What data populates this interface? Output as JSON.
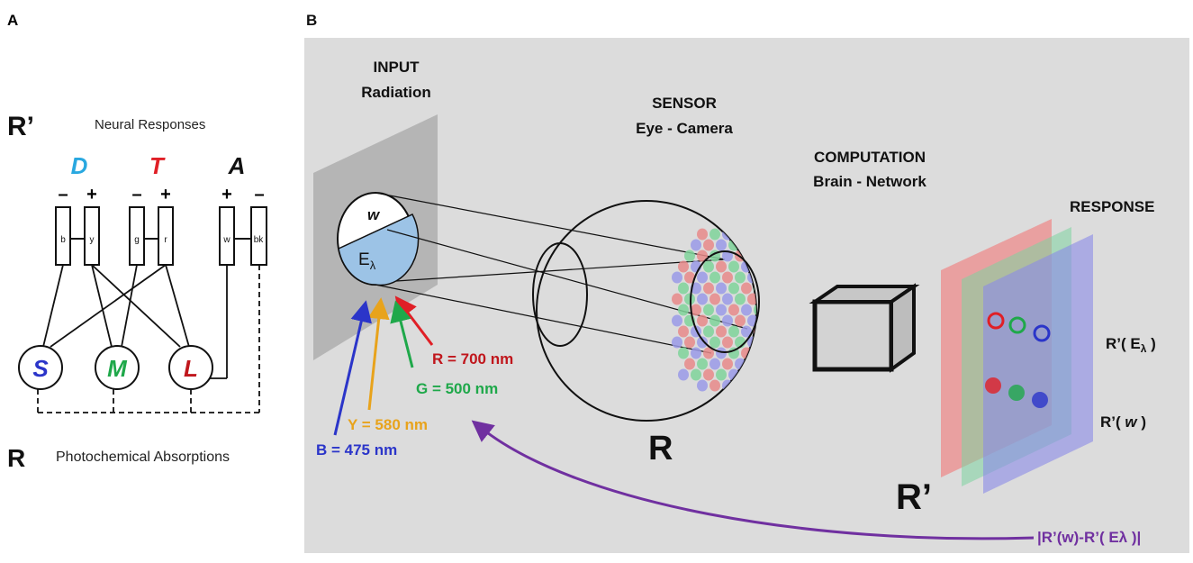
{
  "panel_a": {
    "label": "A",
    "r_prime": "R’",
    "neural_responses": "Neural Responses",
    "channels": [
      {
        "name": "D",
        "color": "#29a8e0",
        "signs": [
          "–",
          "+"
        ],
        "boxes": [
          "b",
          "y"
        ]
      },
      {
        "name": "T",
        "color": "#e01f26",
        "signs": [
          "–",
          "+"
        ],
        "boxes": [
          "g",
          "r"
        ]
      },
      {
        "name": "A",
        "color": "#111111",
        "signs": [
          "+",
          "–"
        ],
        "boxes": [
          "w",
          "bk"
        ]
      }
    ],
    "cones": [
      {
        "name": "S",
        "color": "#2b35c9"
      },
      {
        "name": "M",
        "color": "#1fa84a"
      },
      {
        "name": "L",
        "color": "#c0161c"
      }
    ],
    "r": "R",
    "photochemical": "Photochemical Absorptions"
  },
  "panel_b": {
    "label": "B",
    "input_title": "INPUT",
    "input_sub": "Radiation",
    "w": "w",
    "e_lambda": "E",
    "lambda": "λ",
    "sensor_title": "SENSOR",
    "sensor_sub": "Eye - Camera",
    "computation_title": "COMPUTATION",
    "computation_sub": "Brain - Network",
    "response_title": "RESPONSE",
    "wavelengths": [
      {
        "label": "R = 700 nm",
        "color": "#e01f26"
      },
      {
        "label": "G = 500 nm",
        "color": "#1fa84a"
      },
      {
        "label": "Y = 580 nm",
        "color": "#e8a31c"
      },
      {
        "label": "B = 475 nm",
        "color": "#2b35c9"
      }
    ],
    "r_label": "R",
    "r_prime_label": "R’",
    "r_prime_e_prefix": "R’( E",
    "r_prime_e_suffix": " )",
    "r_prime_w_prefix": "R’( ",
    "r_prime_w_var": "w",
    "r_prime_w_suffix": " )",
    "diff_label": "|R’(w)-R’( Eλ )|",
    "colors": {
      "background": "#dcdcdc",
      "feedback": "#7030a0"
    }
  }
}
